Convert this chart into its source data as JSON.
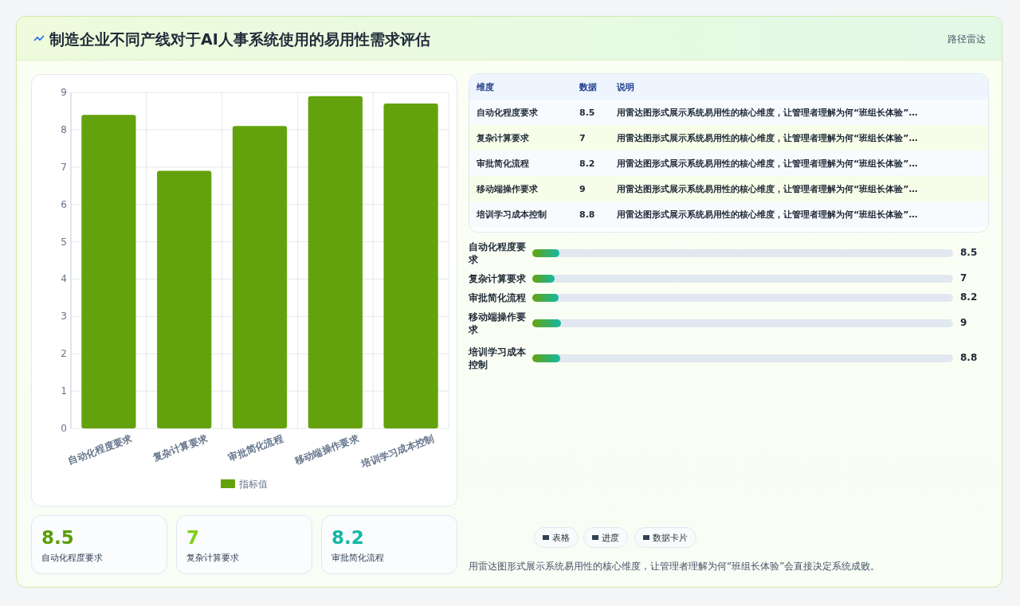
{
  "chart_data": [
    {
      "type": "other",
      "title": "制造企业不同产线对于AI人事系统使用的易用性需求评估",
      "subtitle": "路径雷达"
    },
    {
      "type": "bar",
      "categories": [
        "自动化程度要求",
        "复杂计算要求",
        "审批简化流程",
        "移动端操作要求",
        "培训学习成本控制"
      ],
      "series": [
        {
          "name": "指标值",
          "color": "#63a20d",
          "values": [
            8.4,
            6.9,
            8.1,
            8.9,
            8.7
          ]
        }
      ],
      "ylim": [
        0,
        9
      ],
      "yticks": [
        0,
        1,
        2,
        3,
        4,
        5,
        6,
        7,
        8,
        9
      ],
      "grid": true,
      "legend": "bottom"
    },
    {
      "type": "other",
      "categories": [
        "自动化程度要求",
        "复杂计算要求",
        "审批简化流程",
        "移动端操作要求",
        "培训学习成本控制"
      ],
      "values": [
        8.5,
        7,
        8.2,
        9,
        8.8
      ],
      "data_labels": true,
      "annotations": [
        "维度",
        "数据",
        "说明",
        "用雷达图形式展示系统易用性的核心维度，让管理者理解为何“班组长体验”…",
        "用雷达图形式展示系统易用性的核心维度，让管理者理解为何“班组长体验”…",
        "用雷达图形式展示系统易用性的核心维度，让管理者理解为何“班组长体验”…",
        "用雷达图形式展示系统易用性的核心维度，让管理者理解为何“班组长体验”…",
        "用雷达图形式展示系统易用性的核心维度，让管理者理解为何“班组长体验”…"
      ]
    },
    {
      "type": "other",
      "categories": [
        "自动化程度要求",
        "复杂计算要求",
        "审批简化流程",
        "移动端操作要求",
        "培训学习成本控制"
      ],
      "values": [
        8.5,
        7,
        8.2,
        9,
        8.8
      ],
      "data_labels": true
    },
    {
      "type": "other",
      "categories": [
        "自动化程度要求",
        "复杂计算要求",
        "审批简化流程"
      ],
      "values": [
        8.5,
        7,
        8.2
      ],
      "data_labels": true
    },
    {
      "type": "other",
      "annotations": [
        "表格",
        "进度",
        "数据卡片",
        "用雷达图形式展示系统易用性的核心维度，让管理者理解为何“班组长体验”会直接决定系统成败。"
      ]
    }
  ]
}
